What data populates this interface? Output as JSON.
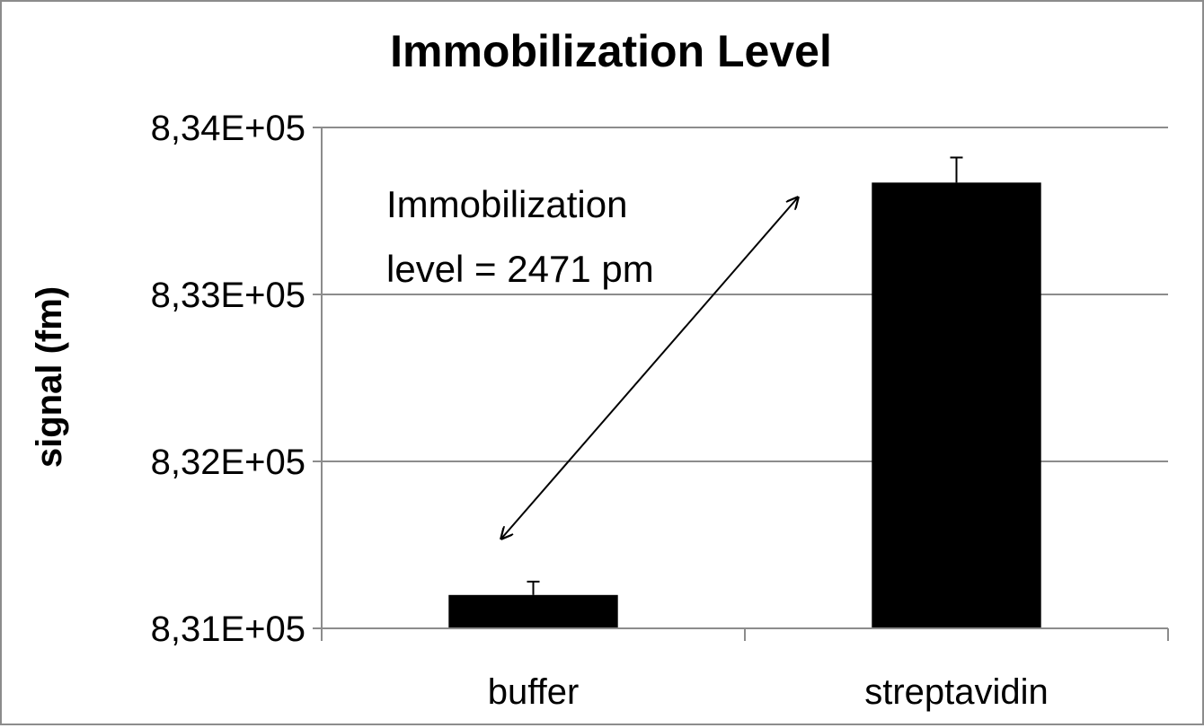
{
  "chart_data": {
    "type": "bar",
    "title": "Immobilization Level",
    "xlabel": "",
    "ylabel": "signal (fm)",
    "categories": [
      "buffer",
      "streptavidin"
    ],
    "values": [
      831200,
      833670
    ],
    "error_bars": [
      80,
      150
    ],
    "ylim": [
      831000,
      834000
    ],
    "yticks": [
      831000,
      832000,
      833000,
      834000
    ],
    "ytick_labels": [
      "8,31E+05",
      "8,32E+05",
      "8,33E+05",
      "8,34E+05"
    ],
    "grid": true,
    "bar_color": "#000000",
    "annotation": {
      "line1": "Immobilization",
      "line2": "level = 2471 pm"
    }
  }
}
